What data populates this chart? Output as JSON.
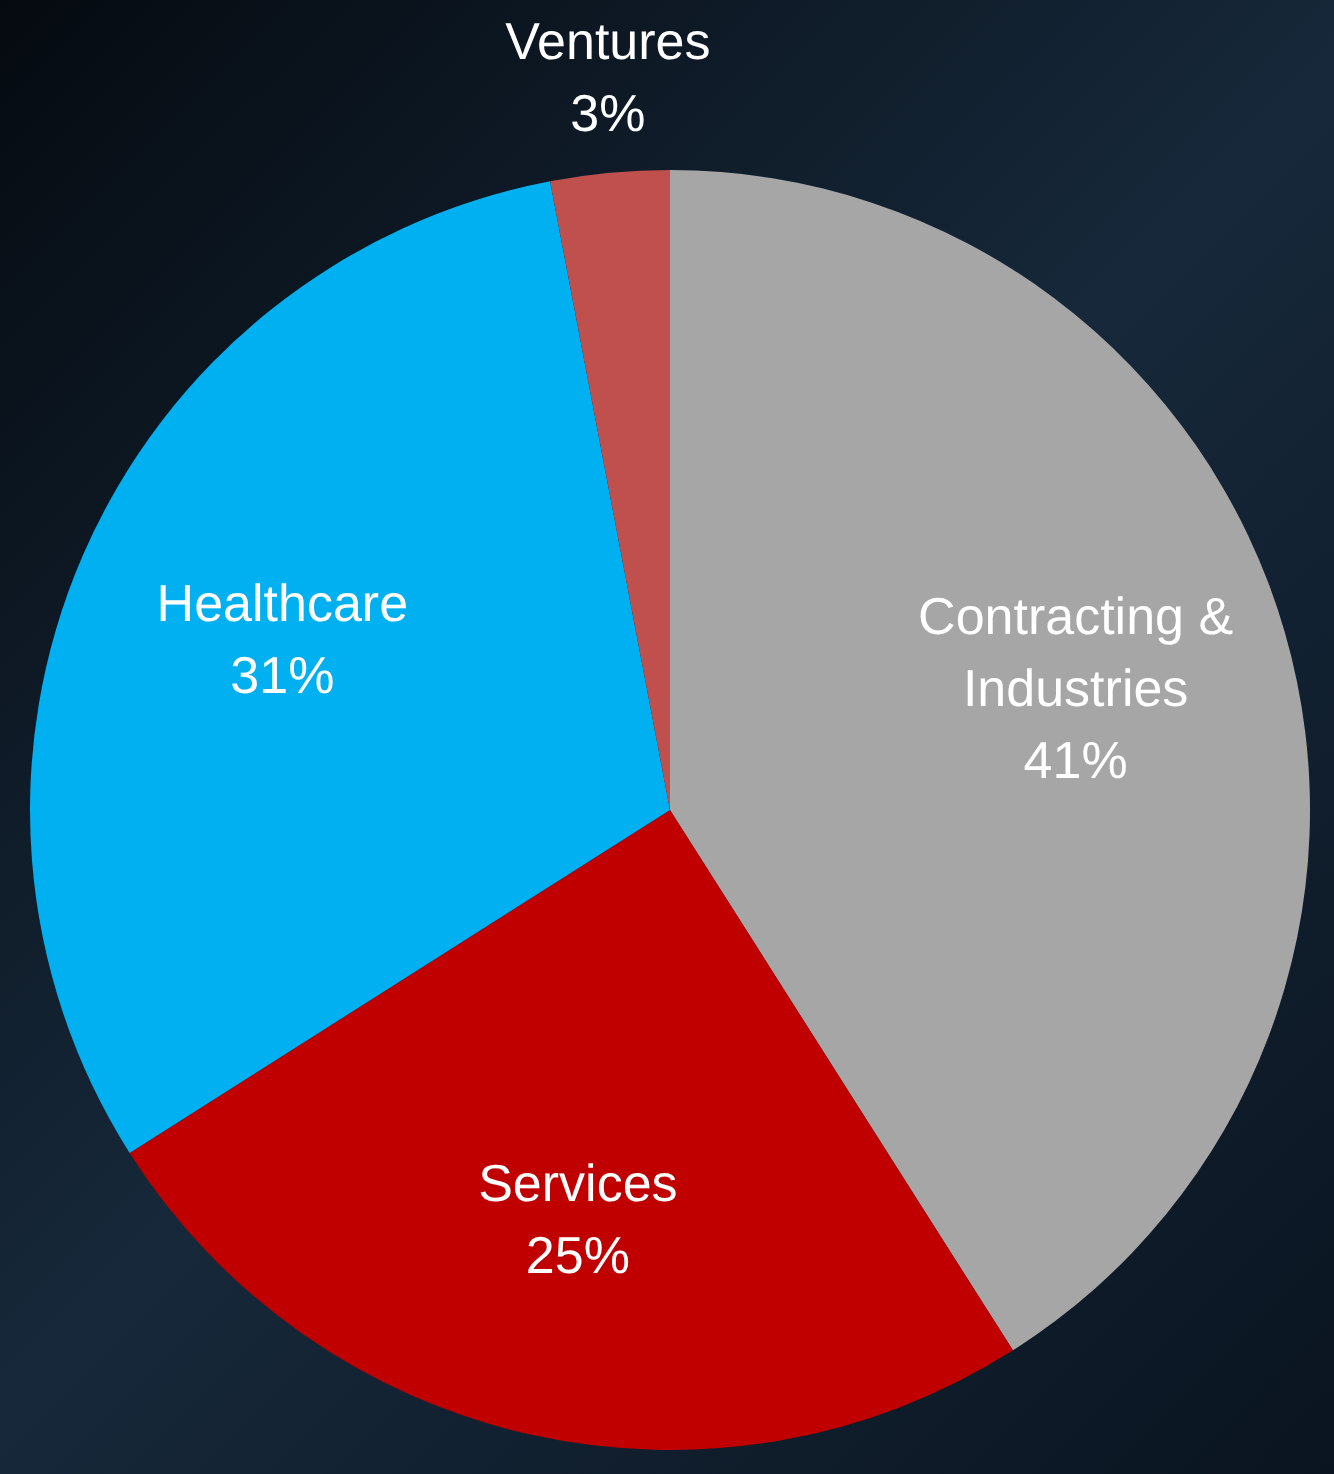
{
  "chart_data": {
    "type": "pie",
    "categories": [
      "Contracting & Industries",
      "Services",
      "Healthcare",
      "Ventures"
    ],
    "values": [
      41,
      25,
      31,
      3
    ],
    "colors": [
      "#a6a6a6",
      "#c00000",
      "#00b0f0",
      "#c0504d"
    ],
    "value_labels": [
      "41%",
      "25%",
      "31%",
      "3%"
    ],
    "legend": false
  }
}
